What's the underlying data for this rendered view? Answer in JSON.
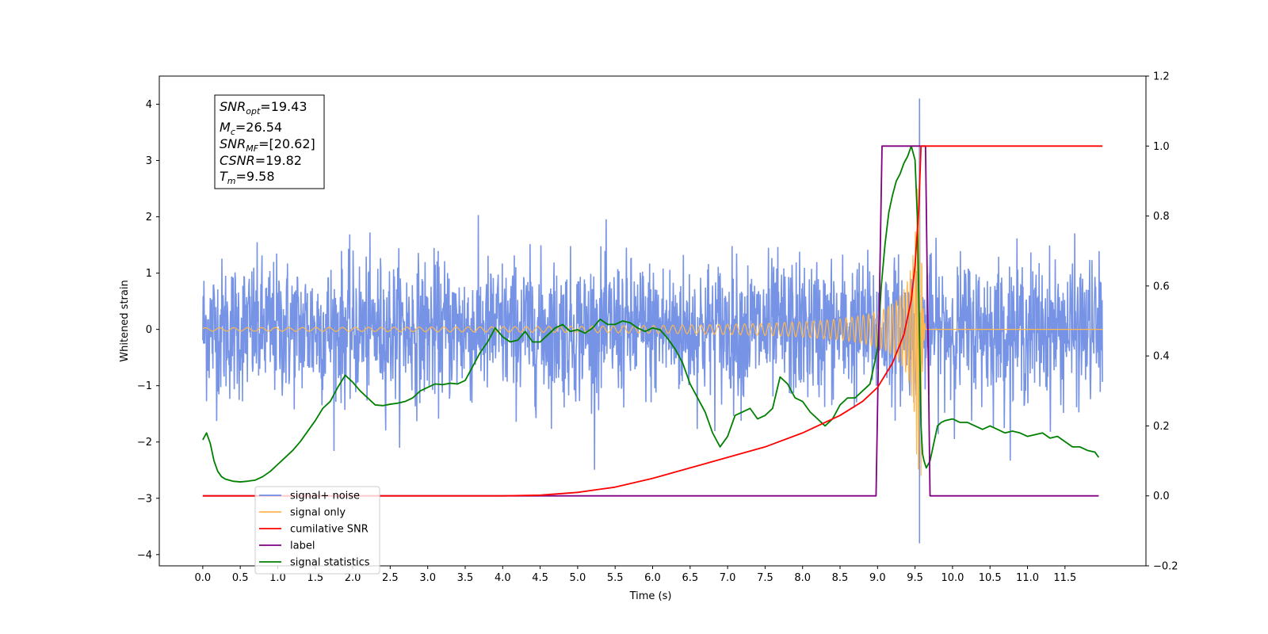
{
  "chart_data": {
    "type": "line",
    "xlabel": "Time (s)",
    "ylabel_left": "Whitened strain",
    "xlim": [
      -0.58,
      12.58
    ],
    "ylim_left": [
      -4.2,
      4.5
    ],
    "ylim_right": [
      -0.2,
      1.2
    ],
    "x_ticks": [
      "0.0",
      "0.5",
      "1.0",
      "1.5",
      "2.0",
      "2.5",
      "3.0",
      "3.5",
      "4.0",
      "4.5",
      "5.0",
      "5.5",
      "6.0",
      "6.5",
      "7.0",
      "7.5",
      "8.0",
      "8.5",
      "9.0",
      "9.5",
      "10.0",
      "10.5",
      "11.0",
      "11.5"
    ],
    "y_ticks_left": [
      "−4",
      "−3",
      "−2",
      "−1",
      "0",
      "1",
      "2",
      "3",
      "4"
    ],
    "y_ticks_right": [
      "−0.2",
      "0.0",
      "0.2",
      "0.4",
      "0.6",
      "0.8",
      "1.0",
      "1.2"
    ],
    "grid": false,
    "legend_position": "lower-left",
    "series": [
      {
        "name": "signal+ noise",
        "color": "#6f8de4",
        "axis": "left",
        "description": "white noise, amplitude about ±2.3, spike to 4.1 and −3.8 at t≈9.56",
        "x_range": [
          0.0,
          12.0
        ],
        "noise_envelope": [
          -2.5,
          2.35
        ],
        "peak_x": 9.56,
        "peak_values": [
          4.1,
          -3.8
        ]
      },
      {
        "name": "signal only",
        "color": "#ffb74d",
        "axis": "left",
        "description": "chirp oscillation growing toward merger at t≈9.58",
        "x_range": [
          0.0,
          12.0
        ],
        "merger_time": 9.58
      },
      {
        "name": "cumilative SNR",
        "color": "#ff0000",
        "axis": "right",
        "x": [
          0.0,
          4.0,
          4.5,
          5.0,
          5.5,
          6.0,
          6.5,
          7.0,
          7.5,
          8.0,
          8.5,
          8.8,
          9.0,
          9.2,
          9.35,
          9.45,
          9.5,
          9.55,
          9.58,
          9.6,
          12.0
        ],
        "values": [
          0.0,
          0.0,
          0.002,
          0.01,
          0.025,
          0.05,
          0.08,
          0.11,
          0.14,
          0.18,
          0.23,
          0.27,
          0.31,
          0.38,
          0.46,
          0.56,
          0.66,
          0.82,
          1.0,
          1.0,
          1.0
        ]
      },
      {
        "name": "label",
        "color": "#800080",
        "axis": "right",
        "x": [
          0.0,
          8.98,
          9.06,
          9.64,
          9.7,
          11.95
        ],
        "values": [
          0.0,
          0.0,
          1.0,
          1.0,
          0.0,
          0.0
        ]
      },
      {
        "name": "signal statistics",
        "color": "#008000",
        "axis": "right",
        "x": [
          0.0,
          0.05,
          0.1,
          0.15,
          0.2,
          0.25,
          0.3,
          0.4,
          0.5,
          0.6,
          0.7,
          0.8,
          0.9,
          1.0,
          1.1,
          1.2,
          1.3,
          1.4,
          1.5,
          1.6,
          1.7,
          1.8,
          1.9,
          2.0,
          2.1,
          2.2,
          2.3,
          2.4,
          2.5,
          2.6,
          2.7,
          2.8,
          2.9,
          3.0,
          3.1,
          3.2,
          3.3,
          3.4,
          3.5,
          3.6,
          3.7,
          3.8,
          3.9,
          4.0,
          4.1,
          4.2,
          4.3,
          4.4,
          4.5,
          4.6,
          4.7,
          4.8,
          4.9,
          5.0,
          5.1,
          5.2,
          5.3,
          5.4,
          5.5,
          5.6,
          5.7,
          5.8,
          5.9,
          6.0,
          6.1,
          6.2,
          6.3,
          6.4,
          6.5,
          6.6,
          6.7,
          6.8,
          6.9,
          7.0,
          7.1,
          7.2,
          7.3,
          7.4,
          7.5,
          7.6,
          7.7,
          7.8,
          7.9,
          8.0,
          8.1,
          8.2,
          8.3,
          8.4,
          8.5,
          8.6,
          8.7,
          8.8,
          8.9,
          9.0,
          9.05,
          9.1,
          9.15,
          9.2,
          9.25,
          9.3,
          9.35,
          9.4,
          9.45,
          9.5,
          9.53,
          9.56,
          9.58,
          9.6,
          9.62,
          9.65,
          9.7,
          9.75,
          9.8,
          9.85,
          9.9,
          10.0,
          10.1,
          10.2,
          10.3,
          10.4,
          10.5,
          10.6,
          10.7,
          10.8,
          10.9,
          11.0,
          11.1,
          11.2,
          11.3,
          11.4,
          11.5,
          11.6,
          11.7,
          11.8,
          11.9,
          11.95
        ],
        "values": [
          0.16,
          0.18,
          0.15,
          0.1,
          0.07,
          0.055,
          0.048,
          0.042,
          0.04,
          0.042,
          0.045,
          0.055,
          0.07,
          0.09,
          0.11,
          0.13,
          0.155,
          0.185,
          0.215,
          0.25,
          0.27,
          0.31,
          0.345,
          0.325,
          0.3,
          0.28,
          0.26,
          0.258,
          0.262,
          0.265,
          0.27,
          0.28,
          0.3,
          0.31,
          0.32,
          0.318,
          0.322,
          0.32,
          0.33,
          0.37,
          0.41,
          0.44,
          0.48,
          0.455,
          0.44,
          0.445,
          0.47,
          0.44,
          0.44,
          0.46,
          0.48,
          0.49,
          0.47,
          0.475,
          0.465,
          0.48,
          0.505,
          0.49,
          0.49,
          0.5,
          0.495,
          0.48,
          0.47,
          0.48,
          0.475,
          0.45,
          0.42,
          0.38,
          0.32,
          0.28,
          0.24,
          0.18,
          0.14,
          0.17,
          0.23,
          0.24,
          0.25,
          0.22,
          0.23,
          0.25,
          0.34,
          0.32,
          0.28,
          0.27,
          0.24,
          0.22,
          0.2,
          0.22,
          0.26,
          0.28,
          0.28,
          0.3,
          0.32,
          0.42,
          0.6,
          0.72,
          0.81,
          0.86,
          0.9,
          0.92,
          0.95,
          0.97,
          1.0,
          0.96,
          0.8,
          0.45,
          0.2,
          0.12,
          0.1,
          0.08,
          0.1,
          0.15,
          0.2,
          0.21,
          0.215,
          0.22,
          0.21,
          0.21,
          0.2,
          0.19,
          0.2,
          0.19,
          0.18,
          0.185,
          0.18,
          0.17,
          0.175,
          0.18,
          0.165,
          0.17,
          0.155,
          0.14,
          0.14,
          0.13,
          0.125,
          0.11
        ]
      }
    ],
    "legend": [
      {
        "name": "signal+ noise",
        "color": "#6f8de4"
      },
      {
        "name": "signal only",
        "color": "#ffb74d"
      },
      {
        "name": "cumilative SNR",
        "color": "#ff0000"
      },
      {
        "name": "label",
        "color": "#800080"
      },
      {
        "name": "signal statistics",
        "color": "#008000"
      }
    ],
    "annotations": [
      {
        "main": "SNR",
        "sub": "opt",
        "value": "=19.43"
      },
      {
        "main": "M",
        "sub": "c",
        "value": "=26.54"
      },
      {
        "main": "SNR",
        "sub": "MF",
        "value": "=[20.62]"
      },
      {
        "main": "CSNR",
        "sub": "",
        "value": "=19.82"
      },
      {
        "main": "T",
        "sub": "m",
        "value": "=9.58"
      }
    ]
  }
}
